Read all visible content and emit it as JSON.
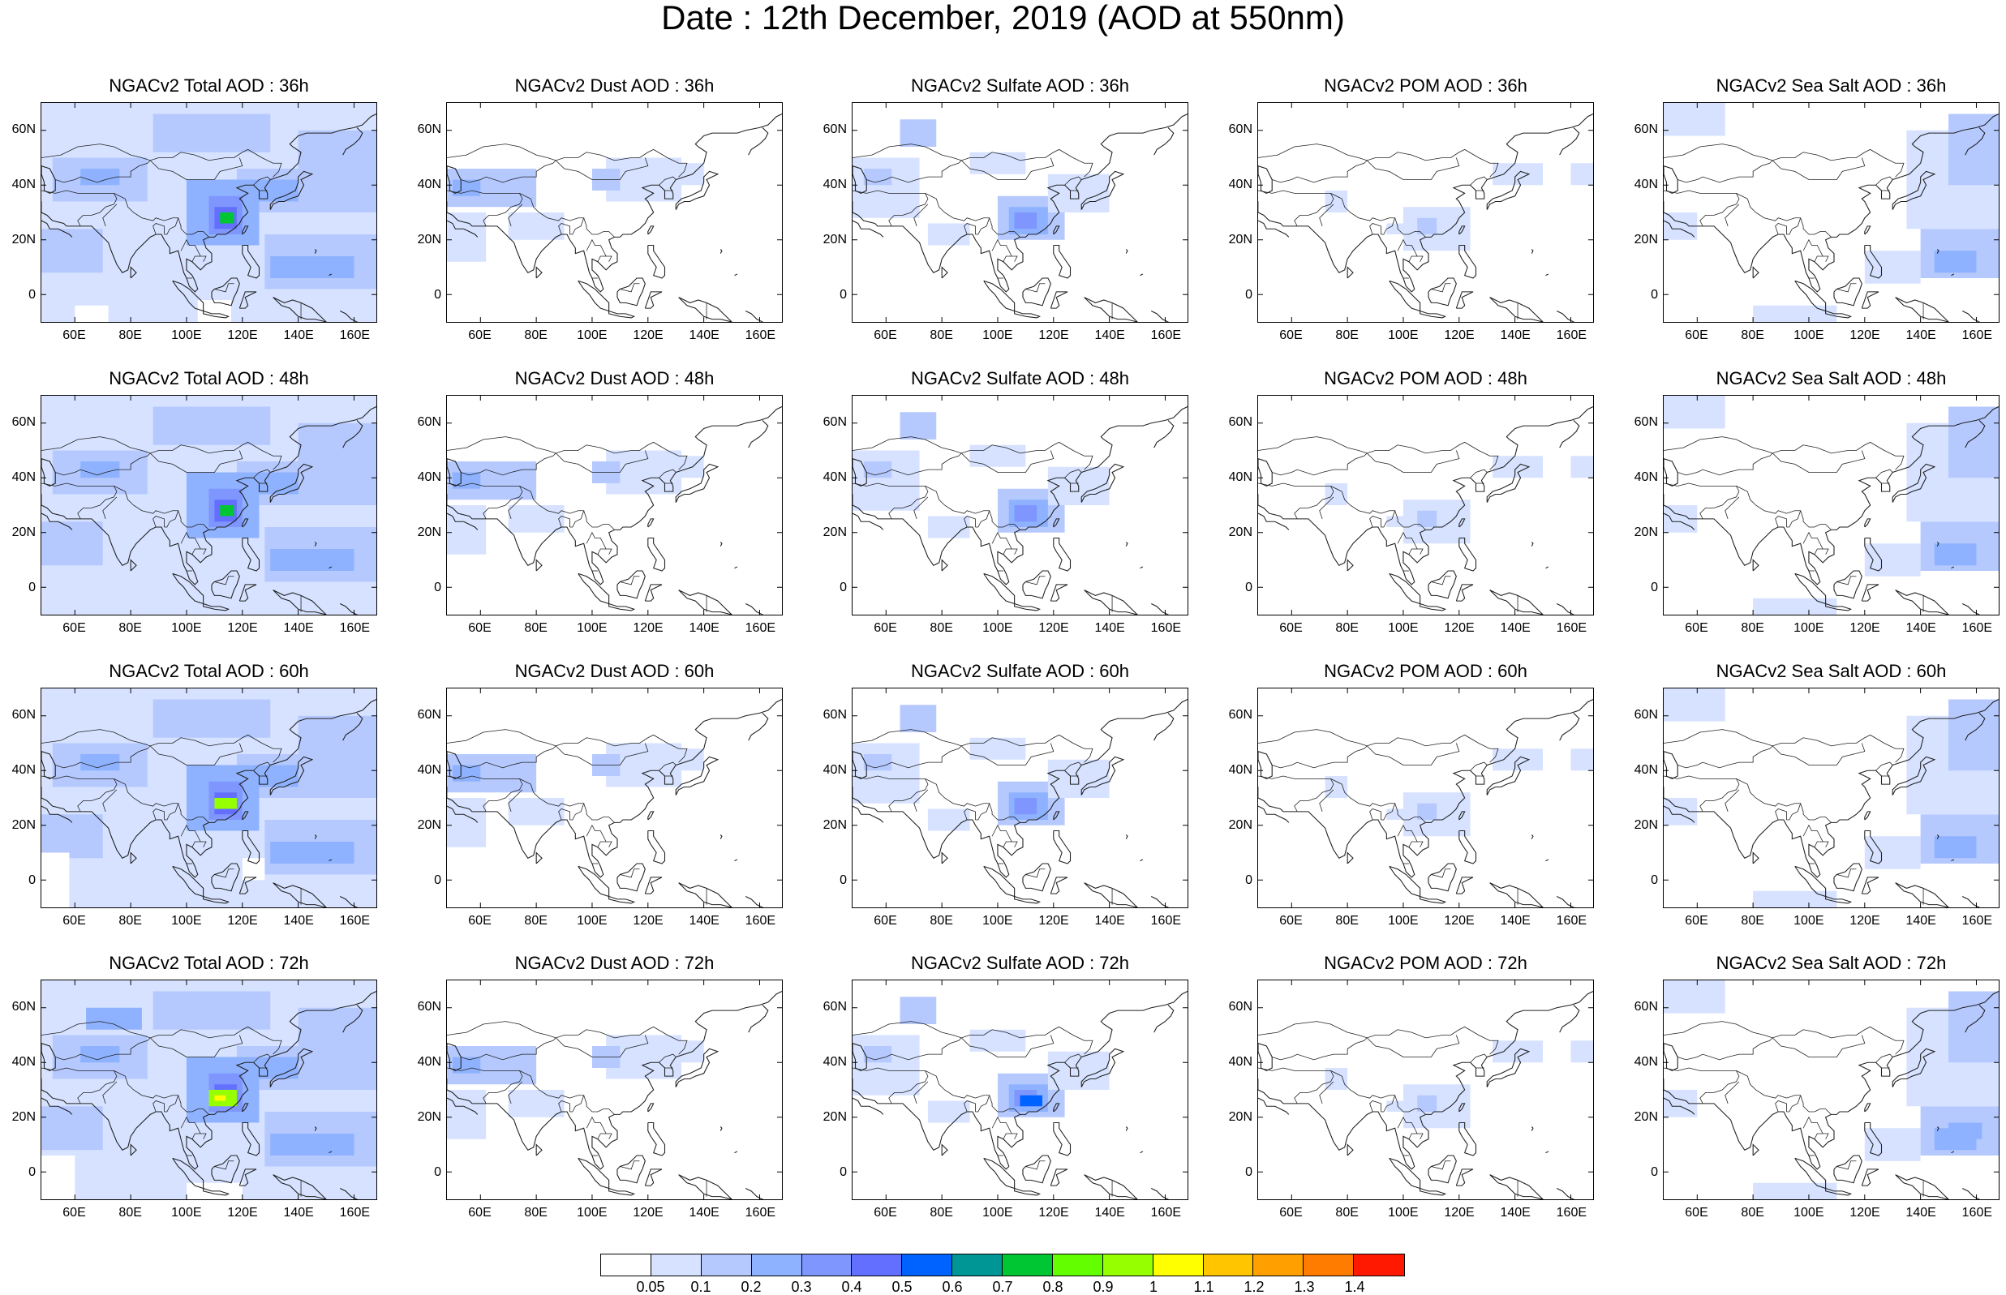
{
  "title": "Date : 12th December, 2019 (AOD at 550nm)",
  "columns": [
    {
      "id": "total",
      "label_prefix": "NGACv2 Total AOD : "
    },
    {
      "id": "dust",
      "label_prefix": "NGACv2 Dust AOD : "
    },
    {
      "id": "sulfate",
      "label_prefix": "NGACv2 Sulfate AOD : "
    },
    {
      "id": "pom",
      "label_prefix": "NGACv2 POM AOD : "
    },
    {
      "id": "seasalt",
      "label_prefix": "NGACv2 Sea Salt AOD : "
    }
  ],
  "panels": [
    [
      "NGACv2 Total AOD : 36h",
      "NGACv2 Dust AOD : 36h",
      "NGACv2 Sulfate AOD : 36h",
      "NGACv2 POM AOD : 36h",
      "NGACv2 Sea Salt AOD : 36h"
    ],
    [
      "NGACv2 Total AOD : 48h",
      "NGACv2 Dust AOD : 48h",
      "NGACv2 Sulfate AOD : 48h",
      "NGACv2 POM AOD : 48h",
      "NGACv2 Sea Salt AOD : 48h"
    ],
    [
      "NGACv2 Total AOD : 60h",
      "NGACv2 Dust AOD : 60h",
      "NGACv2 Sulfate AOD : 60h",
      "NGACv2 POM AOD : 60h",
      "NGACv2 Sea Salt AOD : 60h"
    ],
    [
      "NGACv2 Total AOD : 72h",
      "NGACv2 Dust AOD : 72h",
      "NGACv2 Sulfate AOD : 72h",
      "NGACv2 POM AOD : 72h",
      "NGACv2 Sea Salt  AOD : 72h"
    ]
  ],
  "y_ticks": [
    "60N",
    "40N",
    "20N",
    "0"
  ],
  "x_ticks": [
    "60E",
    "80E",
    "100E",
    "120E",
    "140E",
    "160E"
  ],
  "colorbar": {
    "labels": [
      "0.05",
      "0.1",
      "0.2",
      "0.3",
      "0.4",
      "0.5",
      "0.6",
      "0.7",
      "0.8",
      "0.9",
      "1",
      "1.1",
      "1.2",
      "1.3",
      "1.4"
    ],
    "colors": [
      "#ffffff",
      "#d6e2ff",
      "#b5c9ff",
      "#8eb2ff",
      "#7f96ff",
      "#6370ff",
      "#0063ff",
      "#009696",
      "#00c633",
      "#63ff00",
      "#96ff00",
      "#ffff00",
      "#ffc600",
      "#ffa000",
      "#ff7c00",
      "#ff1900"
    ]
  }
}
